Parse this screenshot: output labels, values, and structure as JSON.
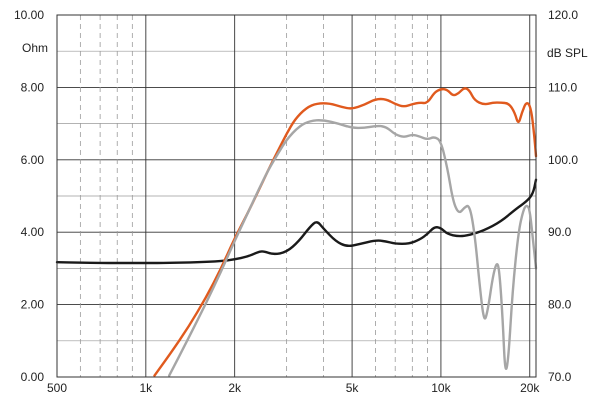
{
  "chart_data": {
    "type": "line",
    "x_scale": "log",
    "xlim": [
      500,
      21000
    ],
    "x_ticks": [
      {
        "value": 500,
        "label": "500"
      },
      {
        "value": 1000,
        "label": "1k"
      },
      {
        "value": 2000,
        "label": "2k"
      },
      {
        "value": 5000,
        "label": "5k"
      },
      {
        "value": 10000,
        "label": "10k"
      },
      {
        "value": 20000,
        "label": "20k"
      }
    ],
    "y_left": {
      "label": "Ohm",
      "lim": [
        0,
        10
      ],
      "ticks": [
        "0.00",
        "2.00",
        "4.00",
        "6.00",
        "8.00",
        "10.00"
      ]
    },
    "y_right": {
      "label": "dB SPL",
      "lim": [
        70,
        120
      ],
      "ticks": [
        "70.0",
        "80.0",
        "90.0",
        "100.0",
        "110.0",
        "120.0"
      ]
    },
    "grid": true,
    "colors": {
      "impedance": "#1a1a1a",
      "spl_on_axis": "#e05a1e",
      "spl_off_axis": "#a6a6a6",
      "grid_major": "#333333",
      "grid_minor": "#9a9a9a"
    },
    "series": [
      {
        "axis": "left",
        "color": "#1a1a1a",
        "points": [
          [
            500,
            3.17
          ],
          [
            600,
            3.16
          ],
          [
            700,
            3.15
          ],
          [
            800,
            3.15
          ],
          [
            1000,
            3.15
          ],
          [
            1200,
            3.15
          ],
          [
            1500,
            3.17
          ],
          [
            1800,
            3.2
          ],
          [
            2000,
            3.25
          ],
          [
            2200,
            3.32
          ],
          [
            2400,
            3.45
          ],
          [
            2500,
            3.48
          ],
          [
            2700,
            3.38
          ],
          [
            3000,
            3.45
          ],
          [
            3300,
            3.75
          ],
          [
            3600,
            4.15
          ],
          [
            3800,
            4.32
          ],
          [
            4000,
            4.1
          ],
          [
            4400,
            3.75
          ],
          [
            4800,
            3.6
          ],
          [
            5300,
            3.67
          ],
          [
            6000,
            3.78
          ],
          [
            6500,
            3.75
          ],
          [
            7000,
            3.68
          ],
          [
            7800,
            3.68
          ],
          [
            8500,
            3.8
          ],
          [
            9000,
            3.95
          ],
          [
            9500,
            4.15
          ],
          [
            10000,
            4.12
          ],
          [
            10500,
            3.95
          ],
          [
            11500,
            3.88
          ],
          [
            12500,
            3.92
          ],
          [
            14000,
            4.05
          ],
          [
            16000,
            4.3
          ],
          [
            18000,
            4.65
          ],
          [
            19500,
            4.85
          ],
          [
            20500,
            5.05
          ],
          [
            21000,
            5.45
          ]
        ]
      },
      {
        "axis": "right",
        "color": "#e05a1e",
        "points": [
          [
            1070,
            70.2
          ],
          [
            1200,
            73
          ],
          [
            1400,
            77
          ],
          [
            1600,
            81
          ],
          [
            1800,
            85
          ],
          [
            2000,
            89.2
          ],
          [
            2200,
            92.4
          ],
          [
            2400,
            95.6
          ],
          [
            2600,
            98.6
          ],
          [
            2800,
            101.2
          ],
          [
            3000,
            103.6
          ],
          [
            3200,
            105.6
          ],
          [
            3500,
            107.2
          ],
          [
            3800,
            107.8
          ],
          [
            4200,
            107.8
          ],
          [
            4600,
            107.3
          ],
          [
            5000,
            107
          ],
          [
            5500,
            107.6
          ],
          [
            6000,
            108.4
          ],
          [
            6500,
            108.4
          ],
          [
            7000,
            107.7
          ],
          [
            7500,
            107.3
          ],
          [
            8000,
            107.7
          ],
          [
            8500,
            107.9
          ],
          [
            9000,
            107.8
          ],
          [
            9500,
            109.3
          ],
          [
            10000,
            109.8
          ],
          [
            10500,
            109.7
          ],
          [
            11000,
            108.8
          ],
          [
            11500,
            109.2
          ],
          [
            12000,
            110
          ],
          [
            12500,
            109.6
          ],
          [
            13000,
            108.2
          ],
          [
            14000,
            107.6
          ],
          [
            15000,
            107.9
          ],
          [
            16000,
            107.9
          ],
          [
            17000,
            107.8
          ],
          [
            17800,
            106.5
          ],
          [
            18300,
            104.8
          ],
          [
            18800,
            106.5
          ],
          [
            19500,
            108.1
          ],
          [
            20200,
            107.2
          ],
          [
            20700,
            103.5
          ],
          [
            21000,
            100.5
          ]
        ]
      },
      {
        "axis": "right",
        "color": "#a6a6a6",
        "points": [
          [
            1200,
            70.2
          ],
          [
            1400,
            75.5
          ],
          [
            1600,
            80.2
          ],
          [
            1800,
            84.6
          ],
          [
            2000,
            88.8
          ],
          [
            2200,
            92.4
          ],
          [
            2400,
            95.7
          ],
          [
            2600,
            98.6
          ],
          [
            2800,
            100.8
          ],
          [
            3000,
            102.8
          ],
          [
            3300,
            104.6
          ],
          [
            3600,
            105.4
          ],
          [
            4000,
            105.5
          ],
          [
            4500,
            105
          ],
          [
            5000,
            104.4
          ],
          [
            5500,
            104.4
          ],
          [
            6000,
            104.7
          ],
          [
            6500,
            104.6
          ],
          [
            7000,
            103.5
          ],
          [
            7500,
            103.1
          ],
          [
            8000,
            103.5
          ],
          [
            8500,
            103.2
          ],
          [
            9000,
            102.8
          ],
          [
            9500,
            103.2
          ],
          [
            10000,
            102.6
          ],
          [
            10500,
            99
          ],
          [
            11000,
            94.2
          ],
          [
            11500,
            92.5
          ],
          [
            12000,
            93.4
          ],
          [
            12500,
            93.8
          ],
          [
            13000,
            90
          ],
          [
            13500,
            83
          ],
          [
            14000,
            77.5
          ],
          [
            14400,
            79
          ],
          [
            15000,
            84
          ],
          [
            15500,
            86
          ],
          [
            15800,
            84.5
          ],
          [
            16200,
            78
          ],
          [
            16500,
            70.5
          ],
          [
            16900,
            72
          ],
          [
            17500,
            82
          ],
          [
            18300,
            90
          ],
          [
            19000,
            93
          ],
          [
            19500,
            93.8
          ],
          [
            20000,
            93.2
          ],
          [
            20500,
            89
          ],
          [
            21000,
            85
          ]
        ]
      }
    ]
  }
}
